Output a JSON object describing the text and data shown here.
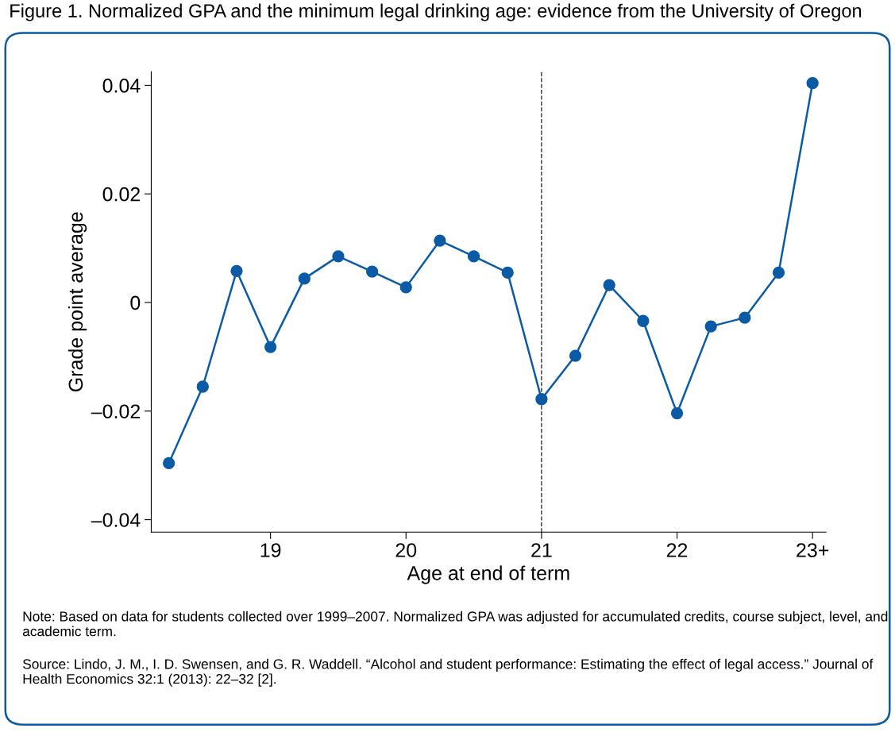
{
  "chart_data": {
    "type": "line",
    "title": "Figure 1. Normalized GPA and the minimum legal drinking age: evidence from the University of Oregon",
    "xlabel": "Age at end of term",
    "ylabel": "Grade point average",
    "x": [
      18.25,
      18.5,
      18.75,
      19,
      19.25,
      19.5,
      19.75,
      20,
      20.25,
      20.5,
      20.75,
      21,
      21.25,
      21.5,
      21.75,
      22,
      22.25,
      22.5,
      22.75,
      23
    ],
    "series": [
      {
        "color": "#0b5aa5",
        "values": [
          -0.0296,
          -0.0155,
          0.0058,
          -0.0082,
          0.0044,
          0.0085,
          0.0057,
          0.0028,
          0.0114,
          0.0085,
          0.0055,
          -0.0178,
          -0.0098,
          0.0032,
          -0.0034,
          -0.0204,
          -0.0044,
          -0.0028,
          0.0055,
          0.0404
        ]
      }
    ],
    "marker": "circle",
    "line_style": "solid",
    "grid": false,
    "legend": false,
    "xlim": [
      18.12,
      23.1
    ],
    "xticks": [
      19,
      20,
      21,
      22,
      {
        "value": 23,
        "label": "23+"
      }
    ],
    "ylim": [
      -0.0423,
      0.0425
    ],
    "yticks": [
      {
        "value": -0.04,
        "label": "–0.04"
      },
      {
        "value": -0.02,
        "label": "–0.02"
      },
      {
        "value": 0,
        "label": "0"
      },
      {
        "value": 0.02,
        "label": "0.02"
      },
      {
        "value": 0.04,
        "label": "0.04"
      }
    ],
    "ref_lines": [
      {
        "axis": "x",
        "value": 21,
        "color": "#333333",
        "line_style": "dashed"
      }
    ],
    "annotations": [
      "Note: Based on data for students collected over 1999–2007. Normalized GPA was adjusted for accumulated credits, course subject, level, and academic term.",
      "Source: Lindo, J. M., I. D. Swensen, and G. R. Waddell. “Alcohol and student performance: Estimating the effect of legal access.” Journal of Health Economics 32:1 (2013): 22–32 [2]."
    ]
  }
}
